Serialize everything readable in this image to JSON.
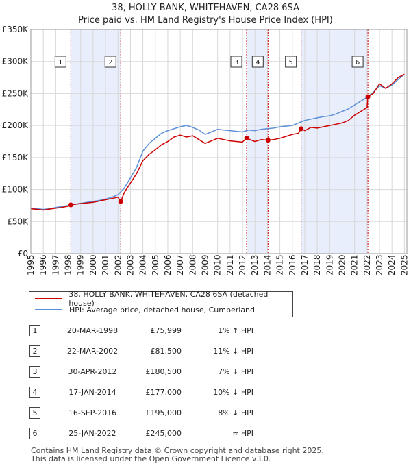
{
  "title": "38, HOLLY BANK, WHITEHAVEN, CA28 6SA",
  "subtitle": "Price paid vs. HM Land Registry's House Price Index (HPI)",
  "legend": {
    "property": "38, HOLLY BANK, WHITEHAVEN, CA28 6SA (detached house)",
    "hpi": "HPI: Average price, detached house, Cumberland"
  },
  "colors": {
    "property": "#cc0000",
    "hpi": "#5b8fd6",
    "shade": "#e8eefb",
    "vline": "#cc0000"
  },
  "transactions": [
    {
      "num": "1",
      "date": "20-MAR-1998",
      "price": "£75,999",
      "hpi": "1% ↑ HPI"
    },
    {
      "num": "2",
      "date": "22-MAR-2002",
      "price": "£81,500",
      "hpi": "11% ↓ HPI"
    },
    {
      "num": "3",
      "date": "30-APR-2012",
      "price": "£180,500",
      "hpi": "7% ↓ HPI"
    },
    {
      "num": "4",
      "date": "17-JAN-2014",
      "price": "£177,000",
      "hpi": "10% ↓ HPI"
    },
    {
      "num": "5",
      "date": "16-SEP-2016",
      "price": "£195,000",
      "hpi": "8% ↓ HPI"
    },
    {
      "num": "6",
      "date": "25-JAN-2022",
      "price": "£245,000",
      "hpi": "≈ HPI"
    }
  ],
  "footer": {
    "line1": "Contains HM Land Registry data © Crown copyright and database right 2025.",
    "line2": "This data is licensed under the Open Government Licence v3.0."
  },
  "chart_data": {
    "type": "line",
    "title": "38, HOLLY BANK, WHITEHAVEN, CA28 6SA",
    "xlim": [
      1995,
      2025.2
    ],
    "ylim": [
      0,
      350000
    ],
    "x_ticks": [
      1995,
      1996,
      1997,
      1998,
      1999,
      2000,
      2001,
      2002,
      2003,
      2004,
      2005,
      2006,
      2007,
      2008,
      2009,
      2010,
      2011,
      2012,
      2013,
      2014,
      2015,
      2016,
      2017,
      2018,
      2019,
      2020,
      2021,
      2022,
      2023,
      2024,
      2025
    ],
    "y_ticks": [
      0,
      50000,
      100000,
      150000,
      200000,
      250000,
      300000,
      350000
    ],
    "y_tick_labels": [
      "£0",
      "£50K",
      "£100K",
      "£150K",
      "£200K",
      "£250K",
      "£300K",
      "£350K"
    ],
    "shaded_ranges": [
      [
        1998.21,
        2002.22
      ],
      [
        2012.33,
        2014.05
      ],
      [
        2016.71,
        2022.07
      ]
    ],
    "sales": [
      {
        "label": "1",
        "x": 1998.21,
        "y": 75999
      },
      {
        "label": "2",
        "x": 2002.22,
        "y": 81500
      },
      {
        "label": "3",
        "x": 2012.33,
        "y": 180500
      },
      {
        "label": "4",
        "x": 2014.05,
        "y": 177000
      },
      {
        "label": "5",
        "x": 2016.71,
        "y": 195000
      },
      {
        "label": "6",
        "x": 2022.07,
        "y": 245000
      }
    ],
    "series": [
      {
        "name": "38, HOLLY BANK, WHITEHAVEN, CA28 6SA (detached house)",
        "x": [
          1995.0,
          1995.5,
          1996.0,
          1996.5,
          1997.0,
          1997.5,
          1998.0,
          1998.21,
          1998.5,
          1999.0,
          1999.5,
          2000.0,
          2000.5,
          2001.0,
          2001.5,
          2002.0,
          2002.22,
          2002.5,
          2003.0,
          2003.5,
          2004.0,
          2004.5,
          2005.0,
          2005.5,
          2006.0,
          2006.5,
          2007.0,
          2007.5,
          2008.0,
          2008.5,
          2009.0,
          2009.5,
          2010.0,
          2010.5,
          2011.0,
          2011.5,
          2012.0,
          2012.33,
          2012.7,
          2013.0,
          2013.5,
          2014.05,
          2014.5,
          2015.0,
          2015.5,
          2016.0,
          2016.5,
          2016.71,
          2017.0,
          2017.5,
          2018.0,
          2018.5,
          2019.0,
          2019.5,
          2020.0,
          2020.5,
          2021.0,
          2021.5,
          2022.0,
          2022.07,
          2022.5,
          2023.0,
          2023.5,
          2024.0,
          2024.5,
          2025.0
        ],
        "y": [
          70000,
          69000,
          68000,
          69500,
          71000,
          72000,
          74000,
          75999,
          77000,
          78000,
          79000,
          80000,
          82000,
          84000,
          86000,
          88000,
          81500,
          95000,
          110000,
          125000,
          145000,
          155000,
          162000,
          170000,
          175000,
          182000,
          185000,
          182000,
          184000,
          178000,
          172000,
          176000,
          180000,
          178000,
          176000,
          175000,
          174000,
          180500,
          177000,
          175000,
          178000,
          177000,
          178000,
          180000,
          183000,
          186000,
          188000,
          195000,
          192000,
          197000,
          196000,
          198000,
          200000,
          202000,
          204000,
          208000,
          216000,
          222000,
          228000,
          245000,
          250000,
          265000,
          258000,
          265000,
          275000,
          280000
        ]
      },
      {
        "name": "HPI: Average price, detached house, Cumberland",
        "x": [
          1995.0,
          1995.5,
          1996.0,
          1996.5,
          1997.0,
          1997.5,
          1998.0,
          1998.5,
          1999.0,
          1999.5,
          2000.0,
          2000.5,
          2001.0,
          2001.5,
          2002.0,
          2002.5,
          2003.0,
          2003.5,
          2004.0,
          2004.5,
          2005.0,
          2005.5,
          2006.0,
          2006.5,
          2007.0,
          2007.5,
          2008.0,
          2008.5,
          2009.0,
          2009.5,
          2010.0,
          2010.5,
          2011.0,
          2011.5,
          2012.0,
          2012.5,
          2013.0,
          2013.5,
          2014.0,
          2014.5,
          2015.0,
          2015.5,
          2016.0,
          2016.5,
          2017.0,
          2017.5,
          2018.0,
          2018.5,
          2019.0,
          2019.5,
          2020.0,
          2020.5,
          2021.0,
          2021.5,
          2022.0,
          2022.5,
          2023.0,
          2023.5,
          2024.0,
          2024.5,
          2025.0
        ],
        "y": [
          71000,
          70000,
          69000,
          70000,
          72000,
          73500,
          75000,
          77000,
          78500,
          80000,
          81500,
          83000,
          85000,
          88000,
          92000,
          102000,
          118000,
          135000,
          160000,
          172000,
          180000,
          188000,
          192000,
          195000,
          198000,
          200000,
          197000,
          193000,
          186000,
          190000,
          194000,
          193000,
          192000,
          191000,
          190000,
          193000,
          192000,
          194000,
          195000,
          196000,
          198000,
          199000,
          200000,
          204000,
          208000,
          210000,
          212000,
          214000,
          215000,
          218000,
          222000,
          226000,
          232000,
          238000,
          244000,
          252000,
          262000,
          258000,
          263000,
          272000,
          280000
        ]
      }
    ]
  }
}
